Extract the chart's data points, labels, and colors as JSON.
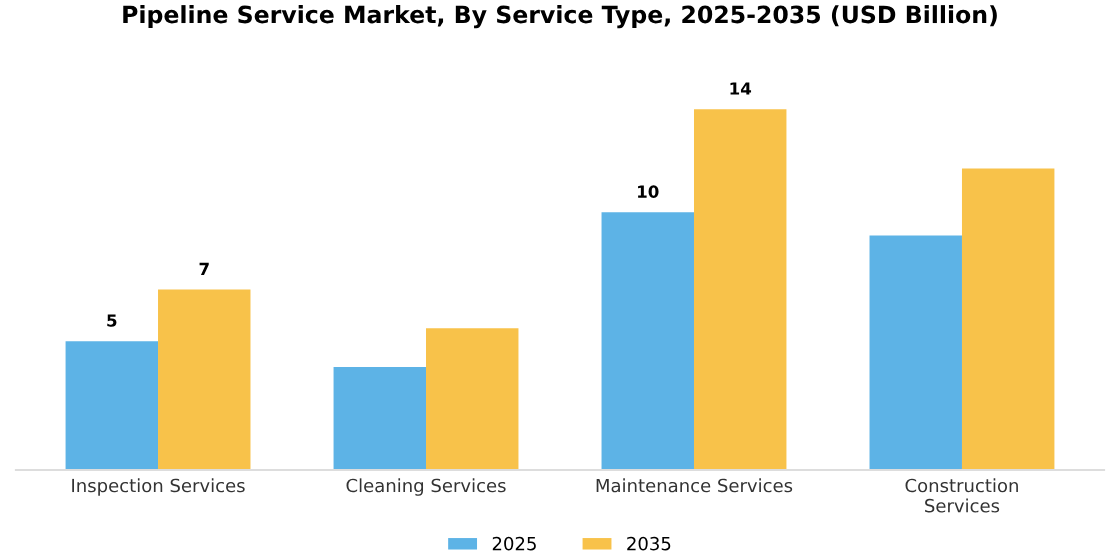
{
  "chart_data": {
    "type": "bar",
    "title": "Pipeline Service Market, By Service Type, 2025-2035 (USD Billion)",
    "categories": [
      "Inspection Services",
      "Cleaning Services",
      "Maintenance Services",
      "Construction Services"
    ],
    "series": [
      {
        "name": "2025",
        "color": "#5db3e6",
        "values": [
          5,
          4.0,
          10,
          9.1
        ],
        "value_labels": [
          "5",
          null,
          "10",
          null
        ]
      },
      {
        "name": "2035",
        "color": "#f8c24a",
        "values": [
          7,
          5.5,
          14,
          11.7
        ],
        "value_labels": [
          "7",
          null,
          "14",
          null
        ]
      }
    ],
    "legend": "bottom",
    "grid": false
  }
}
